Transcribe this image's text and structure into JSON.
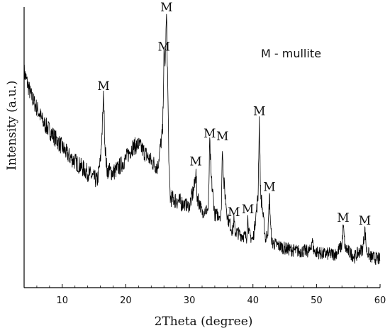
{
  "chart_data": {
    "type": "line",
    "xlabel": "2Theta (degree)",
    "ylabel": "Intensity (a.u.)",
    "xlim": [
      4,
      60
    ],
    "ylim": [
      0,
      100
    ],
    "xticks": [
      10,
      20,
      30,
      40,
      50,
      60
    ],
    "yticks_shown": false,
    "grid": false,
    "legend_text": "M - mullite",
    "colors": {
      "line": "#000000",
      "axis": "#000000"
    },
    "series": [
      {
        "x": [
          4,
          5,
          6,
          7,
          8,
          9,
          10,
          11,
          12,
          13,
          14,
          15,
          15.5,
          16,
          16.3,
          16.5,
          16.7,
          17,
          18,
          19,
          20,
          21,
          22,
          23,
          24,
          25,
          25.8,
          26.0,
          26.2,
          26.4,
          26.6,
          26.8,
          27,
          28,
          29,
          30,
          30.8,
          31,
          31.2,
          32,
          33,
          33.2,
          33.4,
          34,
          35,
          35.2,
          35.4,
          36,
          36.8,
          37,
          37.2,
          38,
          39,
          39.2,
          39.4,
          40,
          40.8,
          41,
          41.2,
          42,
          42.4,
          42.6,
          42.8,
          43,
          45,
          47,
          49,
          49.3,
          49.6,
          51,
          53,
          54,
          54.2,
          54.5,
          56,
          57.3,
          57.6,
          57.9,
          58.5,
          60
        ],
        "y": [
          77,
          69,
          64,
          59,
          56,
          53,
          50,
          47,
          45,
          43,
          41,
          39,
          38,
          45,
          57,
          69,
          52,
          42,
          41,
          43,
          46,
          50,
          51,
          48,
          45,
          43,
          56,
          83,
          80,
          97,
          72,
          42,
          32,
          31,
          30,
          29,
          36,
          42,
          33,
          27,
          28,
          52,
          40,
          26,
          26,
          51,
          38,
          25,
          20,
          24,
          20,
          19,
          18,
          25,
          19,
          17,
          32,
          60,
          34,
          17,
          21,
          33,
          21,
          16,
          14,
          13,
          13,
          17,
          13,
          12,
          12,
          15,
          22,
          14,
          11,
          14,
          21,
          13,
          11,
          10
        ]
      }
    ],
    "annotations": [
      {
        "text": "M",
        "x": 16.5,
        "y": 69
      },
      {
        "text": "M",
        "x": 26.0,
        "y": 83
      },
      {
        "text": "M",
        "x": 26.4,
        "y": 97
      },
      {
        "text": "M",
        "x": 31.0,
        "y": 42
      },
      {
        "text": "M",
        "x": 33.2,
        "y": 52
      },
      {
        "text": "M",
        "x": 35.2,
        "y": 51
      },
      {
        "text": "M",
        "x": 37.0,
        "y": 24
      },
      {
        "text": "M",
        "x": 39.2,
        "y": 25
      },
      {
        "text": "M",
        "x": 41.0,
        "y": 60
      },
      {
        "text": "M",
        "x": 42.6,
        "y": 33
      },
      {
        "text": "M",
        "x": 54.2,
        "y": 22
      },
      {
        "text": "M",
        "x": 57.6,
        "y": 21
      }
    ]
  }
}
